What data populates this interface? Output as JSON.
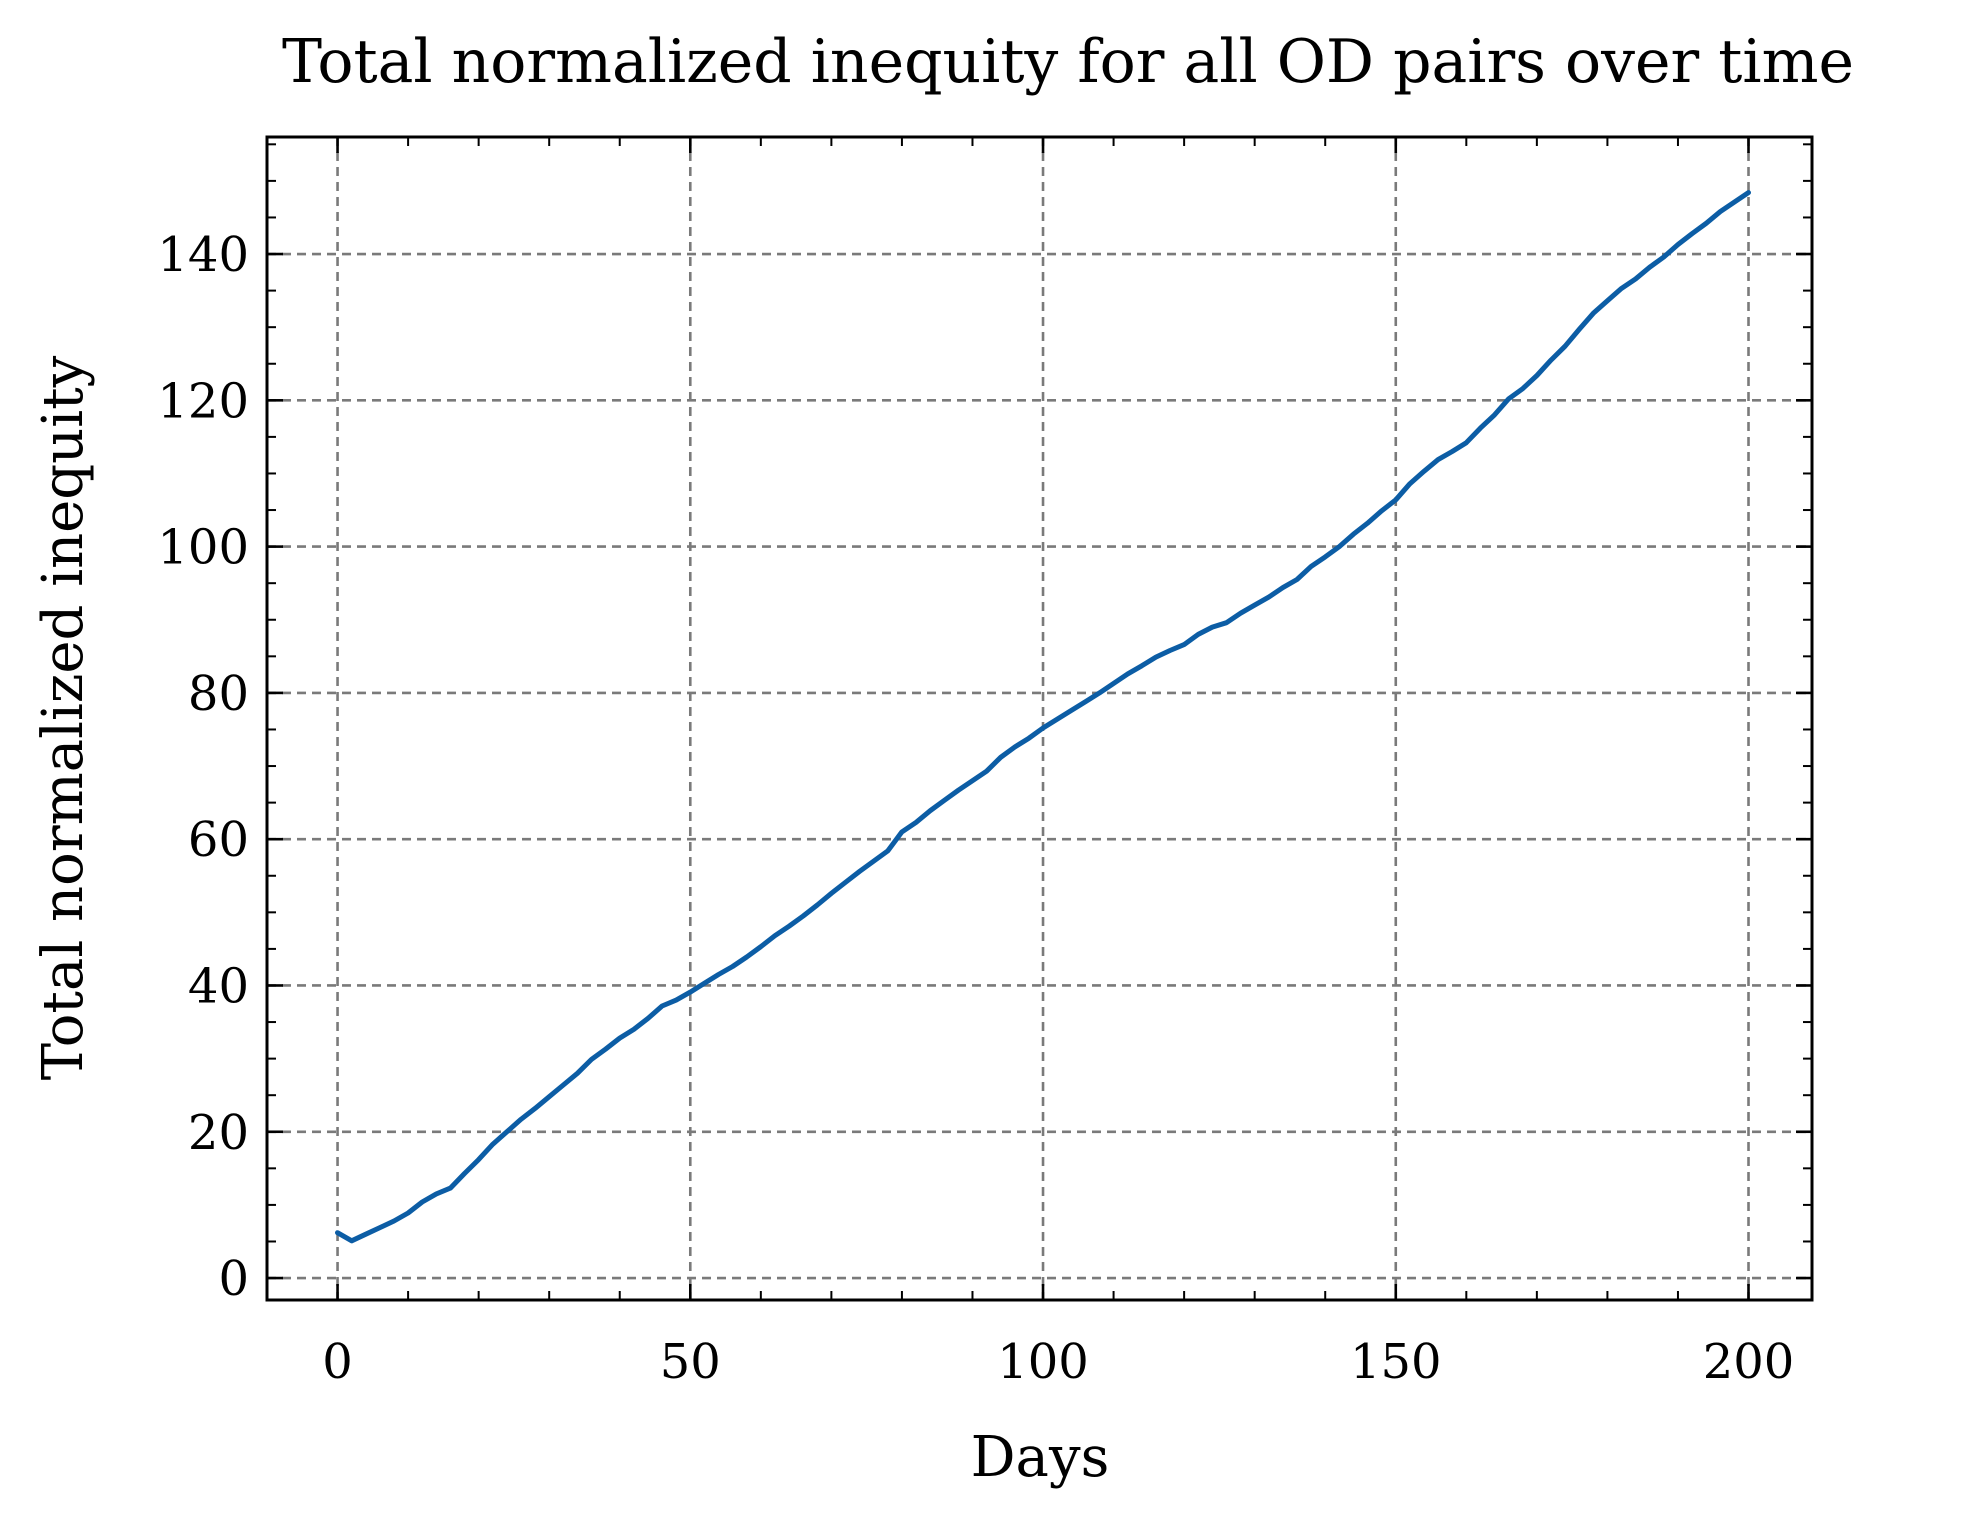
{
  "chart_data": {
    "type": "line",
    "title": "Total normalized inequity for all OD pairs over time",
    "xlabel": "Days",
    "ylabel": "Total normalized inequity",
    "xlim": [
      -10,
      209
    ],
    "ylim": [
      -3,
      156
    ],
    "xticks": [
      0,
      50,
      100,
      150,
      200
    ],
    "xtick_labels": [
      "0",
      "50",
      "100",
      "150",
      "200"
    ],
    "xminor_step": 10,
    "yticks": [
      0,
      20,
      40,
      60,
      80,
      100,
      120,
      140
    ],
    "ytick_labels": [
      "0",
      "20",
      "40",
      "60",
      "80",
      "100",
      "120",
      "140"
    ],
    "yminor_step": 5,
    "grid": true,
    "series_color": "#0C5DA5",
    "grid_color": "#7a7a7a",
    "series": [
      {
        "x": [
          0,
          2,
          4,
          6,
          8,
          10,
          12,
          14,
          16,
          18,
          20,
          22,
          24,
          26,
          28,
          30,
          32,
          34,
          36,
          38,
          40,
          42,
          44,
          46,
          48,
          50,
          52,
          54,
          56,
          58,
          60,
          62,
          64,
          66,
          68,
          70,
          72,
          74,
          76,
          78,
          80,
          82,
          84,
          86,
          88,
          90,
          92,
          94,
          96,
          98,
          100,
          102,
          104,
          106,
          108,
          110,
          112,
          114,
          116,
          118,
          120,
          122,
          124,
          126,
          128,
          130,
          132,
          134,
          136,
          138,
          140,
          142,
          144,
          146,
          148,
          150,
          152,
          154,
          156,
          158,
          160,
          162,
          164,
          166,
          168,
          170,
          172,
          174,
          176,
          178,
          180,
          182,
          184,
          186,
          188,
          190,
          192,
          194,
          196,
          198,
          200
        ],
        "values": [
          6.2,
          5.1,
          6.0,
          6.9,
          7.8,
          8.9,
          10.4,
          11.5,
          12.3,
          14.3,
          16.2,
          18.3,
          20.0,
          21.7,
          23.2,
          24.8,
          26.4,
          28.0,
          29.9,
          31.3,
          32.8,
          34.0,
          35.5,
          37.2,
          38.0,
          39.1,
          40.3,
          41.5,
          42.6,
          43.9,
          45.3,
          46.8,
          48.1,
          49.5,
          51.0,
          52.6,
          54.1,
          55.6,
          57.0,
          58.4,
          61.0,
          62.3,
          63.9,
          65.3,
          66.7,
          68.0,
          69.3,
          71.2,
          72.6,
          73.8,
          75.2,
          76.4,
          77.6,
          78.8,
          80.0,
          81.3,
          82.6,
          83.7,
          84.9,
          85.8,
          86.6,
          88.0,
          89.0,
          89.6,
          90.9,
          92.0,
          93.1,
          94.4,
          95.5,
          97.3,
          98.6,
          100.0,
          101.7,
          103.2,
          104.9,
          106.4,
          108.6,
          110.3,
          111.9,
          113.0,
          114.2,
          116.2,
          118.0,
          120.2,
          121.6,
          123.4,
          125.5,
          127.4,
          129.7,
          131.9,
          133.6,
          135.3,
          136.6,
          138.2,
          139.6,
          141.3,
          142.8,
          144.2,
          145.8,
          147.1,
          148.4
        ]
      }
    ]
  }
}
